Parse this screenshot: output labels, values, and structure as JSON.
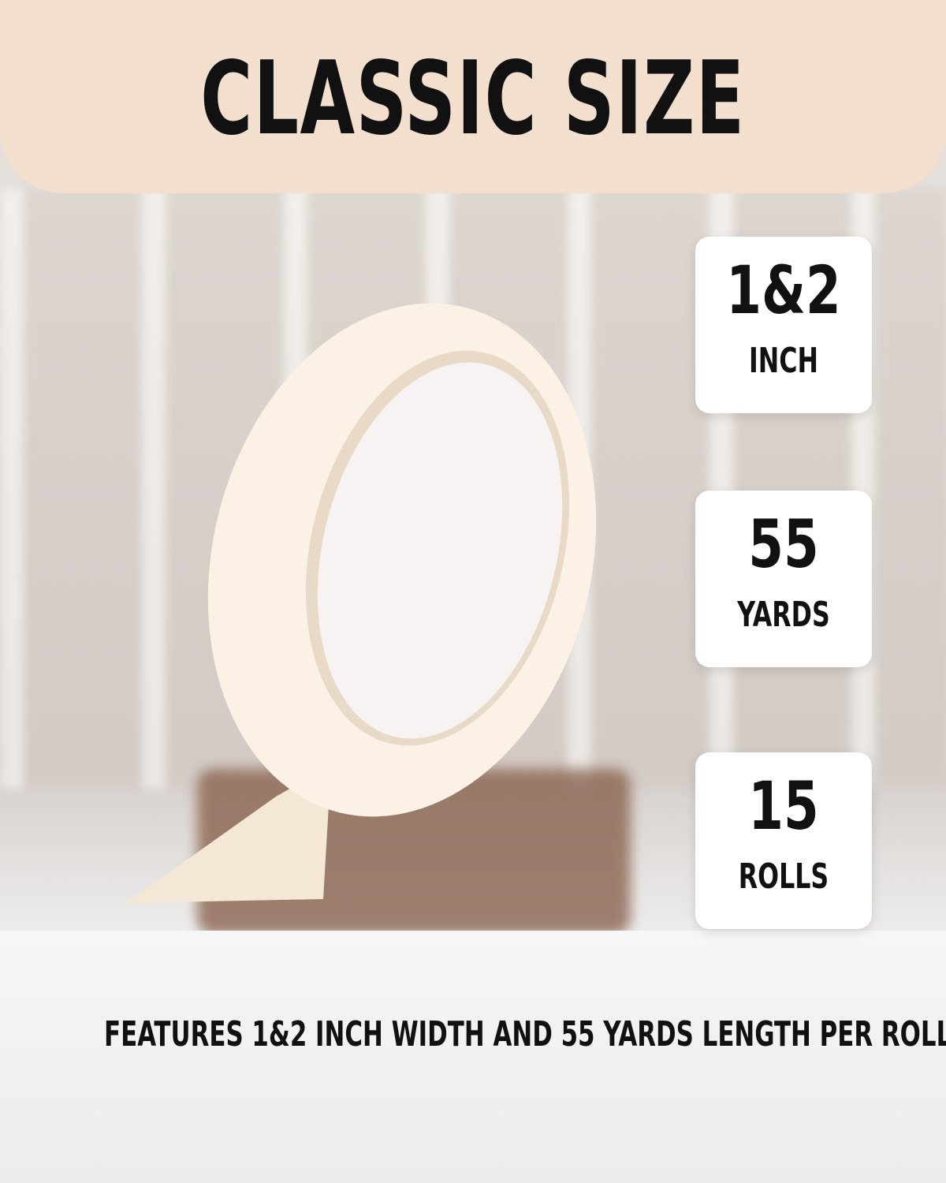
{
  "title": "CLASSIC SIZE",
  "cards": [
    {
      "value": "1&2",
      "unit": "INCH"
    },
    {
      "value": "55",
      "unit": "YARDS"
    },
    {
      "value": "15",
      "unit": "ROLLS"
    }
  ],
  "caption": "FEATURES 1&2 INCH WIDTH AND 55 YARDS LENGTH PER ROLL",
  "colors": {
    "banner": "#f2dfcd",
    "tape": "#fbf1e4"
  }
}
